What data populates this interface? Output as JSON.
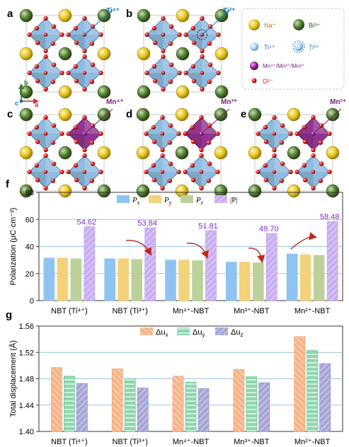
{
  "panels": {
    "a": {
      "letter": "a",
      "callout": "Ti⁴⁺"
    },
    "b": {
      "letter": "b",
      "callout": "Ti³⁺"
    },
    "c": {
      "letter": "c",
      "callout": "Mn⁴⁺"
    },
    "d": {
      "letter": "d",
      "callout": "Mn³⁺"
    },
    "e": {
      "letter": "e",
      "callout": "Mn²⁺"
    }
  },
  "axes_indicator": {
    "b": "b",
    "c": "c",
    "a": "a"
  },
  "legend": {
    "na": "Na⁺",
    "bi": "Bi³⁺",
    "ti4": "Ti⁴⁺",
    "ti3": "Ti³⁺",
    "mn": "Mn⁴⁺/Mn³⁺/Mn²⁺",
    "o": "O²⁻"
  },
  "colors": {
    "octahedron": "#6aa6d6",
    "mn_octahedron": "#7a1f7a",
    "na": "#e8c51c",
    "bi": "#4f7d2e",
    "o": "#d81a1a",
    "callout_ti": "#1a72c0",
    "callout_mn": "#7a1f7a"
  },
  "chart_data": [
    {
      "panel": "f",
      "type": "bar",
      "ylabel": "Polarization (μC·cm⁻²)",
      "ylim": [
        0,
        80
      ],
      "yticks": [
        0,
        20,
        40,
        60,
        80
      ],
      "categories": [
        "NBT (Ti⁴⁺)",
        "NBT (Ti³⁺)",
        "Mn⁴⁺-NBT",
        "Mn³⁺-NBT",
        "Mn²⁺-NBT"
      ],
      "series": [
        {
          "name": "P",
          "sub": "x",
          "color": "#8ec3f2",
          "values": [
            31.5,
            31.0,
            30.0,
            28.5,
            34.5
          ]
        },
        {
          "name": "P",
          "sub": "y",
          "color": "#f2d27a",
          "values": [
            31.5,
            31.0,
            30.0,
            28.5,
            34.0
          ]
        },
        {
          "name": "P",
          "sub": "z",
          "color": "#bcd19a",
          "values": [
            31.0,
            30.5,
            29.5,
            28.0,
            33.5
          ]
        },
        {
          "name": "|P|",
          "sub": "",
          "color": "#c9aef2",
          "values": [
            54.62,
            53.84,
            51.81,
            49.7,
            58.48
          ]
        }
      ],
      "data_labels": [
        "54.62",
        "53.84",
        "51.81",
        "49.70",
        "58.48"
      ],
      "data_label_color": "#7b2fd0"
    },
    {
      "panel": "g",
      "type": "bar",
      "ylabel": "Total displacement (Å)",
      "ylim": [
        1.4,
        1.56
      ],
      "yticks": [
        "1.40",
        "1.44",
        "1.48",
        "1.52",
        "1.56"
      ],
      "categories": [
        "NBT (Ti⁴⁺)",
        "NBT (Ti³⁺)",
        "Mn⁴⁺-NBT",
        "Mn³⁺-NBT",
        "Mn²⁺-NBT"
      ],
      "series": [
        {
          "name": "Δu",
          "sub": "x",
          "color": "#f7b488",
          "values": [
            1.497,
            1.495,
            1.484,
            1.494,
            1.544
          ]
        },
        {
          "name": "Δu",
          "sub": "y",
          "color": "#8fd6ae",
          "values": [
            1.484,
            1.48,
            1.475,
            1.483,
            1.523
          ]
        },
        {
          "name": "Δu",
          "sub": "z",
          "color": "#a7a6d8",
          "values": [
            1.473,
            1.466,
            1.465,
            1.474,
            1.503
          ]
        }
      ]
    }
  ],
  "chart_panel_letters": {
    "f": "f",
    "g": "g"
  }
}
